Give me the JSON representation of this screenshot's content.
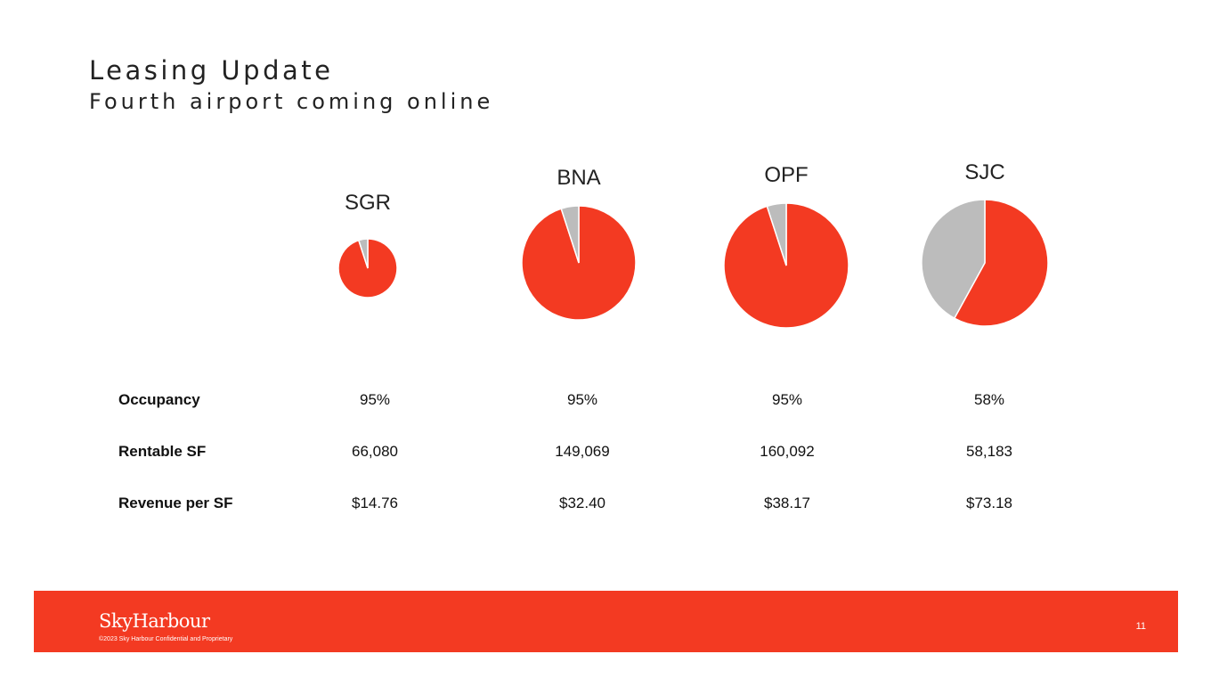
{
  "slide": {
    "title": "Leasing Update",
    "subtitle": "Fourth airport coming online",
    "page_number": "11"
  },
  "footer": {
    "logo_text": "SkyHarbour",
    "copyright": "©2023 Sky Harbour Confidential and Proprietary",
    "background_color": "#f33a22"
  },
  "colors": {
    "occupied": "#f33a22",
    "vacant": "#bcbcbc"
  },
  "chart_data": {
    "type": "pie",
    "charts": [
      {
        "label": "SGR",
        "occupied_pct": 95,
        "rentable_sf": 66080
      },
      {
        "label": "BNA",
        "occupied_pct": 95,
        "rentable_sf": 149069
      },
      {
        "label": "OPF",
        "occupied_pct": 95,
        "rentable_sf": 160092
      },
      {
        "label": "SJC",
        "occupied_pct": 58,
        "rentable_sf": 58183
      }
    ]
  },
  "table": {
    "rows": [
      {
        "label": "Occupancy",
        "values": [
          "95%",
          "95%",
          "95%",
          "58%"
        ]
      },
      {
        "label": "Rentable SF",
        "values": [
          "66,080",
          "149,069",
          "160,092",
          "58,183"
        ]
      },
      {
        "label": "Revenue per SF",
        "values": [
          "$14.76",
          "$32.40",
          "$38.17",
          "$73.18"
        ]
      }
    ]
  }
}
